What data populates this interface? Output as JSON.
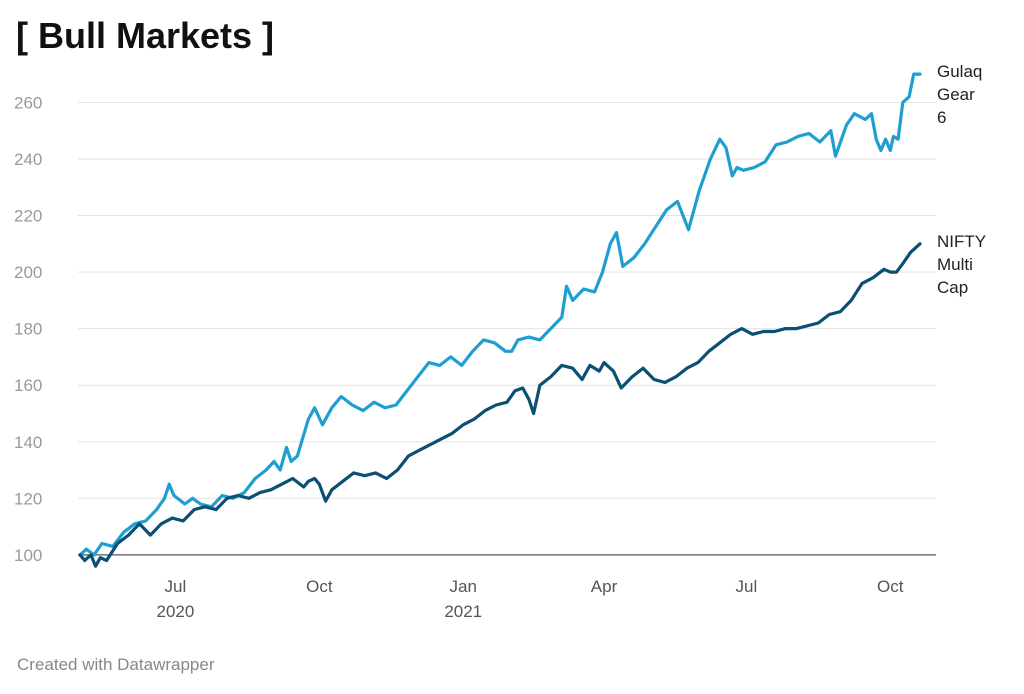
{
  "title": "[ Bull Markets ]",
  "footer": "Created with Datawrapper",
  "chart_data": {
    "type": "line",
    "title": "[ Bull Markets ]",
    "xlabel": "",
    "ylabel": "",
    "x_range": [
      "2020-05-01",
      "2021-10-20"
    ],
    "ylim": [
      95,
      275
    ],
    "y_ticks": [
      100,
      120,
      140,
      160,
      180,
      200,
      220,
      240,
      260
    ],
    "x_ticks": [
      {
        "date": "2020-07-01",
        "label": "Jul",
        "sublabel": "2020"
      },
      {
        "date": "2020-10-01",
        "label": "Oct",
        "sublabel": ""
      },
      {
        "date": "2021-01-01",
        "label": "Jan",
        "sublabel": "2021"
      },
      {
        "date": "2021-04-01",
        "label": "Apr",
        "sublabel": ""
      },
      {
        "date": "2021-07-01",
        "label": "Jul",
        "sublabel": ""
      },
      {
        "date": "2021-10-01",
        "label": "Oct",
        "sublabel": ""
      }
    ],
    "grid": "horizontal",
    "legend": "direct labels at right end of lines",
    "series": [
      {
        "name": "Gulaq Gear 6",
        "label_lines": [
          "Gulaq",
          "Gear",
          "6"
        ],
        "color": "#1f9fd1",
        "points": [
          [
            "2020-05-01",
            100
          ],
          [
            "2020-05-05",
            102
          ],
          [
            "2020-05-10",
            100
          ],
          [
            "2020-05-15",
            104
          ],
          [
            "2020-05-22",
            103
          ],
          [
            "2020-05-29",
            108
          ],
          [
            "2020-06-05",
            111
          ],
          [
            "2020-06-12",
            112
          ],
          [
            "2020-06-19",
            116
          ],
          [
            "2020-06-24",
            120
          ],
          [
            "2020-06-27",
            125
          ],
          [
            "2020-06-30",
            121
          ],
          [
            "2020-07-07",
            118
          ],
          [
            "2020-07-12",
            120
          ],
          [
            "2020-07-17",
            118
          ],
          [
            "2020-07-24",
            117
          ],
          [
            "2020-07-31",
            121
          ],
          [
            "2020-08-07",
            120
          ],
          [
            "2020-08-14",
            122
          ],
          [
            "2020-08-21",
            127
          ],
          [
            "2020-08-28",
            130
          ],
          [
            "2020-09-02",
            133
          ],
          [
            "2020-09-06",
            130
          ],
          [
            "2020-09-10",
            138
          ],
          [
            "2020-09-13",
            133
          ],
          [
            "2020-09-17",
            135
          ],
          [
            "2020-09-24",
            148
          ],
          [
            "2020-09-28",
            152
          ],
          [
            "2020-10-03",
            146
          ],
          [
            "2020-10-09",
            152
          ],
          [
            "2020-10-15",
            156
          ],
          [
            "2020-10-22",
            153
          ],
          [
            "2020-10-29",
            151
          ],
          [
            "2020-11-05",
            154
          ],
          [
            "2020-11-12",
            152
          ],
          [
            "2020-11-19",
            153
          ],
          [
            "2020-11-26",
            158
          ],
          [
            "2020-12-03",
            163
          ],
          [
            "2020-12-10",
            168
          ],
          [
            "2020-12-17",
            167
          ],
          [
            "2020-12-24",
            170
          ],
          [
            "2020-12-31",
            167
          ],
          [
            "2021-01-07",
            172
          ],
          [
            "2021-01-14",
            176
          ],
          [
            "2021-01-21",
            175
          ],
          [
            "2021-01-28",
            172
          ],
          [
            "2021-02-01",
            172
          ],
          [
            "2021-02-05",
            176
          ],
          [
            "2021-02-12",
            177
          ],
          [
            "2021-02-19",
            176
          ],
          [
            "2021-02-26",
            180
          ],
          [
            "2021-03-05",
            184
          ],
          [
            "2021-03-08",
            195
          ],
          [
            "2021-03-12",
            190
          ],
          [
            "2021-03-19",
            194
          ],
          [
            "2021-03-26",
            193
          ],
          [
            "2021-03-31",
            200
          ],
          [
            "2021-04-05",
            210
          ],
          [
            "2021-04-09",
            214
          ],
          [
            "2021-04-13",
            202
          ],
          [
            "2021-04-20",
            205
          ],
          [
            "2021-04-27",
            210
          ],
          [
            "2021-05-04",
            216
          ],
          [
            "2021-05-11",
            222
          ],
          [
            "2021-05-18",
            225
          ],
          [
            "2021-05-25",
            215
          ],
          [
            "2021-06-01",
            229
          ],
          [
            "2021-06-08",
            240
          ],
          [
            "2021-06-14",
            247
          ],
          [
            "2021-06-18",
            244
          ],
          [
            "2021-06-22",
            234
          ],
          [
            "2021-06-25",
            237
          ],
          [
            "2021-06-29",
            236
          ],
          [
            "2021-07-06",
            237
          ],
          [
            "2021-07-13",
            239
          ],
          [
            "2021-07-20",
            245
          ],
          [
            "2021-07-27",
            246
          ],
          [
            "2021-08-03",
            248
          ],
          [
            "2021-08-10",
            249
          ],
          [
            "2021-08-17",
            246
          ],
          [
            "2021-08-24",
            250
          ],
          [
            "2021-08-27",
            241
          ],
          [
            "2021-09-03",
            252
          ],
          [
            "2021-09-08",
            256
          ],
          [
            "2021-09-15",
            254
          ],
          [
            "2021-09-19",
            256
          ],
          [
            "2021-09-22",
            247
          ],
          [
            "2021-09-25",
            243
          ],
          [
            "2021-09-28",
            247
          ],
          [
            "2021-10-01",
            243
          ],
          [
            "2021-10-03",
            248
          ],
          [
            "2021-10-06",
            247
          ],
          [
            "2021-10-09",
            260
          ],
          [
            "2021-10-13",
            262
          ],
          [
            "2021-10-16",
            270
          ],
          [
            "2021-10-20",
            270
          ]
        ]
      },
      {
        "name": "NIFTY Multi Cap",
        "label_lines": [
          "NIFTY",
          "Multi",
          "Cap"
        ],
        "color": "#0b4f72",
        "points": [
          [
            "2020-05-01",
            100
          ],
          [
            "2020-05-04",
            98
          ],
          [
            "2020-05-08",
            100
          ],
          [
            "2020-05-11",
            96
          ],
          [
            "2020-05-14",
            99
          ],
          [
            "2020-05-18",
            98
          ],
          [
            "2020-05-25",
            104
          ],
          [
            "2020-06-01",
            107
          ],
          [
            "2020-06-08",
            111
          ],
          [
            "2020-06-15",
            107
          ],
          [
            "2020-06-22",
            111
          ],
          [
            "2020-06-29",
            113
          ],
          [
            "2020-07-06",
            112
          ],
          [
            "2020-07-13",
            116
          ],
          [
            "2020-07-20",
            117
          ],
          [
            "2020-07-27",
            116
          ],
          [
            "2020-08-03",
            120
          ],
          [
            "2020-08-10",
            121
          ],
          [
            "2020-08-17",
            120
          ],
          [
            "2020-08-24",
            122
          ],
          [
            "2020-08-31",
            123
          ],
          [
            "2020-09-07",
            125
          ],
          [
            "2020-09-14",
            127
          ],
          [
            "2020-09-21",
            124
          ],
          [
            "2020-09-24",
            126
          ],
          [
            "2020-09-28",
            127
          ],
          [
            "2020-10-01",
            125
          ],
          [
            "2020-10-05",
            119
          ],
          [
            "2020-10-09",
            123
          ],
          [
            "2020-10-16",
            126
          ],
          [
            "2020-10-23",
            129
          ],
          [
            "2020-10-30",
            128
          ],
          [
            "2020-11-06",
            129
          ],
          [
            "2020-11-13",
            127
          ],
          [
            "2020-11-20",
            130
          ],
          [
            "2020-11-27",
            135
          ],
          [
            "2020-12-04",
            137
          ],
          [
            "2020-12-11",
            139
          ],
          [
            "2020-12-18",
            141
          ],
          [
            "2020-12-25",
            143
          ],
          [
            "2021-01-01",
            146
          ],
          [
            "2021-01-08",
            148
          ],
          [
            "2021-01-15",
            151
          ],
          [
            "2021-01-22",
            153
          ],
          [
            "2021-01-29",
            154
          ],
          [
            "2021-02-03",
            158
          ],
          [
            "2021-02-08",
            159
          ],
          [
            "2021-02-12",
            155
          ],
          [
            "2021-02-15",
            150
          ],
          [
            "2021-02-19",
            160
          ],
          [
            "2021-02-26",
            163
          ],
          [
            "2021-03-05",
            167
          ],
          [
            "2021-03-12",
            166
          ],
          [
            "2021-03-18",
            162
          ],
          [
            "2021-03-23",
            167
          ],
          [
            "2021-03-29",
            165
          ],
          [
            "2021-04-01",
            168
          ],
          [
            "2021-04-07",
            165
          ],
          [
            "2021-04-12",
            159
          ],
          [
            "2021-04-19",
            163
          ],
          [
            "2021-04-26",
            166
          ],
          [
            "2021-05-03",
            162
          ],
          [
            "2021-05-10",
            161
          ],
          [
            "2021-05-17",
            163
          ],
          [
            "2021-05-24",
            166
          ],
          [
            "2021-05-31",
            168
          ],
          [
            "2021-06-07",
            172
          ],
          [
            "2021-06-14",
            175
          ],
          [
            "2021-06-21",
            178
          ],
          [
            "2021-06-28",
            180
          ],
          [
            "2021-07-05",
            178
          ],
          [
            "2021-07-12",
            179
          ],
          [
            "2021-07-19",
            179
          ],
          [
            "2021-07-26",
            180
          ],
          [
            "2021-08-02",
            180
          ],
          [
            "2021-08-09",
            181
          ],
          [
            "2021-08-16",
            182
          ],
          [
            "2021-08-23",
            185
          ],
          [
            "2021-08-30",
            186
          ],
          [
            "2021-09-06",
            190
          ],
          [
            "2021-09-13",
            196
          ],
          [
            "2021-09-20",
            198
          ],
          [
            "2021-09-27",
            201
          ],
          [
            "2021-10-01",
            200
          ],
          [
            "2021-10-05",
            200
          ],
          [
            "2021-10-09",
            203
          ],
          [
            "2021-10-14",
            207
          ],
          [
            "2021-10-20",
            210
          ]
        ]
      }
    ]
  }
}
